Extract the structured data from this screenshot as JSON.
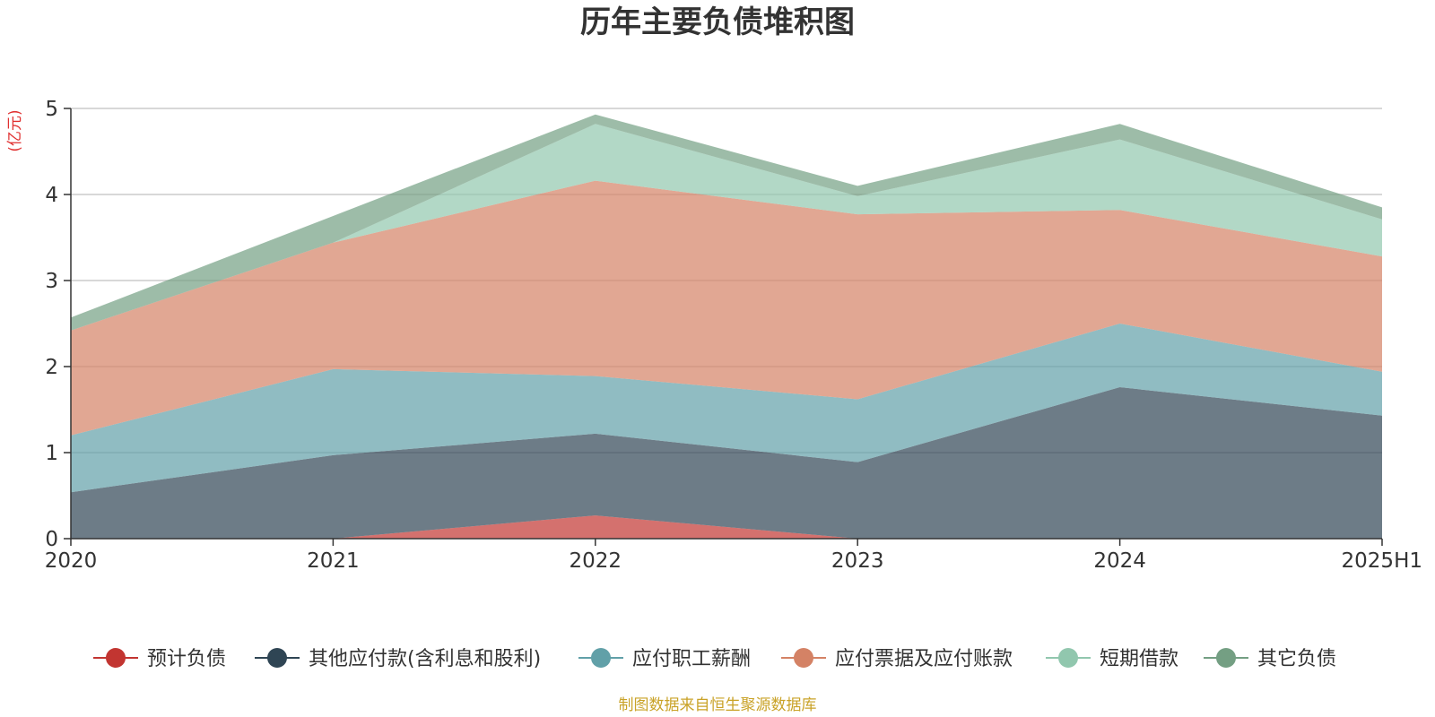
{
  "chart_data": {
    "type": "area",
    "stacked": true,
    "title": "历年主要负债堆积图",
    "unit_label": "(亿元)",
    "categories": [
      "2020",
      "2021",
      "2022",
      "2023",
      "2024",
      "2025H1"
    ],
    "ylim": [
      0,
      5
    ],
    "yticks": [
      "0",
      "1",
      "2",
      "3",
      "4",
      "5"
    ],
    "grid": true,
    "legend_position": "bottom",
    "series": [
      {
        "name": "预计负债",
        "color": "#c23531",
        "values": [
          0.0,
          0.0,
          0.27,
          0.0,
          0.0,
          0.0
        ]
      },
      {
        "name": "其他应付款(含利息和股利)",
        "color": "#2f4554",
        "values": [
          0.54,
          0.97,
          0.95,
          0.89,
          1.76,
          1.43
        ]
      },
      {
        "name": "应付职工薪酬",
        "color": "#61a0a8",
        "values": [
          0.66,
          1.0,
          0.67,
          0.73,
          0.74,
          0.51
        ]
      },
      {
        "name": "应付票据及应付账款",
        "color": "#d48265",
        "values": [
          1.22,
          1.47,
          2.27,
          2.15,
          1.32,
          1.34
        ]
      },
      {
        "name": "短期借款",
        "color": "#91c7ae",
        "values": [
          0.0,
          0.0,
          0.66,
          0.21,
          0.82,
          0.43
        ]
      },
      {
        "name": "其它负债",
        "color": "#749f83",
        "values": [
          0.15,
          0.31,
          0.11,
          0.12,
          0.18,
          0.14
        ]
      }
    ],
    "source": "制图数据来自恒生聚源数据库"
  }
}
